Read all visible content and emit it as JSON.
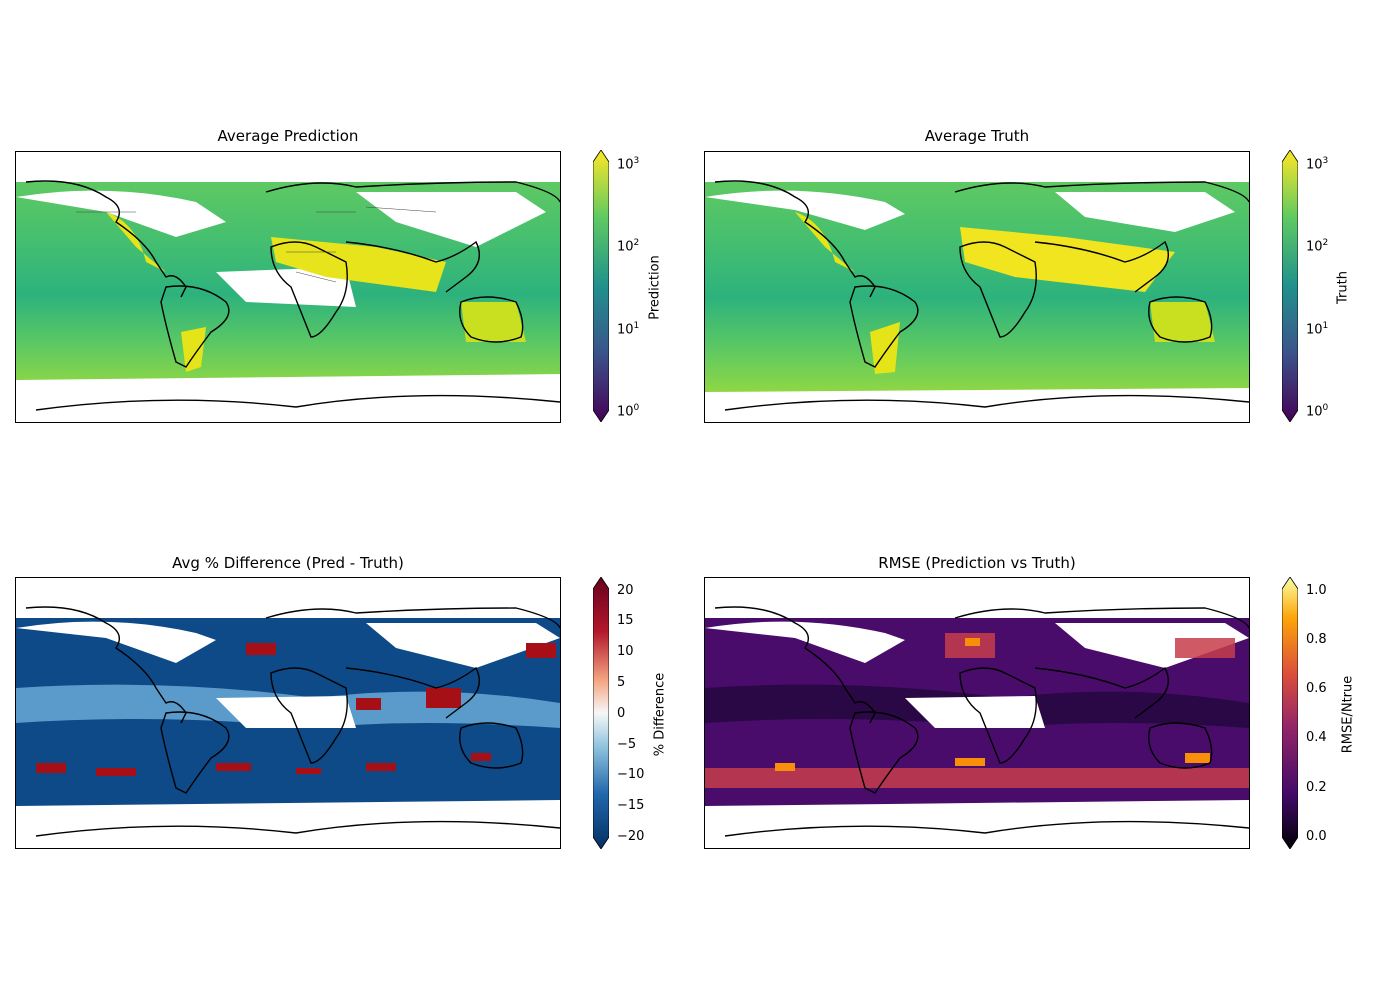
{
  "panels": [
    {
      "title": "Average Prediction",
      "colorbar_label": "Prediction",
      "scale": "log",
      "ticks": [
        {
          "base": "10",
          "exp": "3"
        },
        {
          "base": "10",
          "exp": "2"
        },
        {
          "base": "10",
          "exp": "1"
        },
        {
          "base": "10",
          "exp": "0"
        }
      ],
      "range": [
        1,
        1000
      ],
      "colormap": "viridis",
      "extend": "both"
    },
    {
      "title": "Average Truth",
      "colorbar_label": "Truth",
      "scale": "log",
      "ticks": [
        {
          "base": "10",
          "exp": "3"
        },
        {
          "base": "10",
          "exp": "2"
        },
        {
          "base": "10",
          "exp": "1"
        },
        {
          "base": "10",
          "exp": "0"
        }
      ],
      "range": [
        1,
        1000
      ],
      "colormap": "viridis",
      "extend": "both"
    },
    {
      "title": "Avg % Difference (Pred - Truth)",
      "colorbar_label": "% Difference",
      "scale": "linear",
      "ticks": [
        "20",
        "15",
        "10",
        "5",
        "0",
        "−5",
        "−10",
        "−15",
        "−20"
      ],
      "range": [
        -20,
        20
      ],
      "colormap": "RdBu_r",
      "extend": "both"
    },
    {
      "title": "RMSE (Prediction vs Truth)",
      "colorbar_label": "RMSE/Ntrue",
      "scale": "linear",
      "ticks": [
        "1.0",
        "0.8",
        "0.6",
        "0.4",
        "0.2",
        "0.0"
      ],
      "range": [
        0,
        1
      ],
      "colormap": "inferno",
      "extend": "both"
    }
  ],
  "colors": {
    "viridis": [
      "#440154",
      "#3b528b",
      "#21918c",
      "#5ec962",
      "#fde725"
    ],
    "RdBu_r": [
      "#053061",
      "#2166ac",
      "#92c5de",
      "#f7f7f7",
      "#f4a582",
      "#b2182b",
      "#67001f"
    ],
    "inferno": [
      "#000004",
      "#420a68",
      "#932667",
      "#dd513a",
      "#fca50a",
      "#fcffa4"
    ]
  }
}
